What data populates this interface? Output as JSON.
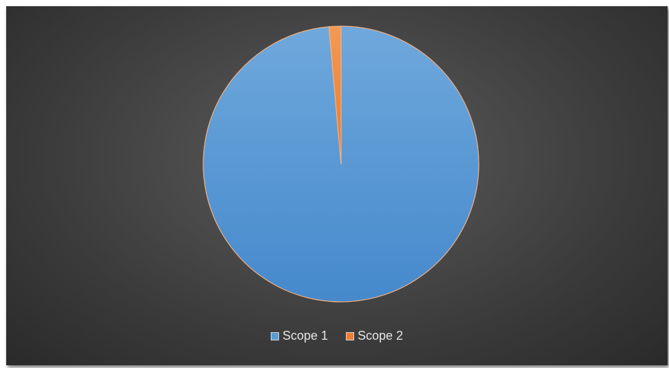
{
  "chart_data": {
    "type": "pie",
    "title": "",
    "categories": [
      "Scope 1",
      "Scope 2"
    ],
    "values": [
      98.6,
      1.4
    ],
    "colors": [
      "#5b9bd5",
      "#ed7d31"
    ],
    "legend_position": "bottom"
  }
}
